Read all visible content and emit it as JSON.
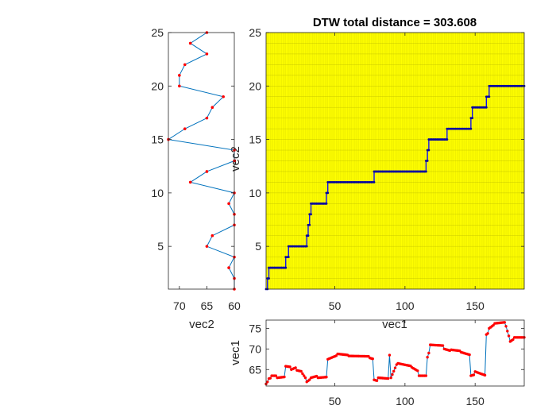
{
  "chart_data": [
    {
      "id": "dtw-path",
      "type": "line",
      "title": "DTW total distance = 303.608",
      "xlabel": "vec1",
      "ylabel": "vec2",
      "xlim": [
        1,
        185
      ],
      "ylim": [
        1,
        25
      ],
      "xticks": [
        50,
        100,
        150
      ],
      "yticks": [
        5,
        10,
        15,
        20,
        25
      ],
      "background": "#ffff00",
      "grid": "dense cell grid",
      "line_color": "#0000ff",
      "marker_color": "#0000a0",
      "path_steps": [
        {
          "x_from": 1,
          "x_to": 2,
          "y": 1
        },
        {
          "x_from": 2,
          "x_to": 3,
          "y": 2
        },
        {
          "x_from": 3,
          "x_to": 15,
          "y": 3
        },
        {
          "x_from": 15,
          "x_to": 17,
          "y": 4
        },
        {
          "x_from": 17,
          "x_to": 30,
          "y": 5
        },
        {
          "x_from": 30,
          "x_to": 31,
          "y": 6
        },
        {
          "x_from": 31,
          "x_to": 32,
          "y": 7
        },
        {
          "x_from": 32,
          "x_to": 33,
          "y": 8
        },
        {
          "x_from": 33,
          "x_to": 44,
          "y": 9
        },
        {
          "x_from": 44,
          "x_to": 45,
          "y": 10
        },
        {
          "x_from": 45,
          "x_to": 78,
          "y": 11
        },
        {
          "x_from": 78,
          "x_to": 115,
          "y": 12
        },
        {
          "x_from": 115,
          "x_to": 116,
          "y": 13
        },
        {
          "x_from": 116,
          "x_to": 117,
          "y": 14
        },
        {
          "x_from": 117,
          "x_to": 130,
          "y": 15
        },
        {
          "x_from": 130,
          "x_to": 147,
          "y": 16
        },
        {
          "x_from": 147,
          "x_to": 148,
          "y": 17
        },
        {
          "x_from": 148,
          "x_to": 158,
          "y": 18
        },
        {
          "x_from": 158,
          "x_to": 160,
          "y": 19
        },
        {
          "x_from": 160,
          "x_to": 185,
          "y": 20
        }
      ]
    },
    {
      "id": "vec2-plot",
      "type": "line",
      "xlabel": "vec2",
      "ylabel": "",
      "xlim": [
        72,
        60
      ],
      "ylim": [
        1,
        25
      ],
      "xticks": [
        70,
        65,
        60
      ],
      "yticks": [
        5,
        10,
        15,
        20,
        25
      ],
      "line_color": "#0072bd",
      "marker_color": "#ff0000",
      "y": [
        1,
        2,
        3,
        4,
        5,
        6,
        7,
        8,
        9,
        10,
        11,
        12,
        13,
        14,
        15,
        16,
        17,
        18,
        19,
        20,
        21,
        22,
        23,
        24,
        25
      ],
      "values": [
        60,
        60,
        61,
        60,
        65,
        64,
        60,
        60,
        61,
        60,
        68,
        65,
        60,
        60,
        72,
        69,
        65,
        64,
        62,
        70,
        70,
        69,
        65,
        68,
        65
      ]
    },
    {
      "id": "vec1-plot",
      "type": "line",
      "xlabel": "",
      "ylabel": "vec1",
      "xlim": [
        1,
        185
      ],
      "ylim": [
        61,
        77
      ],
      "xticks": [
        50,
        100,
        150
      ],
      "yticks": [
        65,
        70,
        75
      ],
      "line_color": "#0072bd",
      "marker_color": "#ff0000",
      "segments": [
        {
          "from": 1,
          "to": 3,
          "start": 61.5,
          "end": 62.5
        },
        {
          "from": 3,
          "to": 5,
          "start": 62.8,
          "end": 63.0
        },
        {
          "from": 5,
          "to": 9,
          "start": 63.5,
          "end": 63.5
        },
        {
          "from": 9,
          "to": 14,
          "start": 63.0,
          "end": 63.2
        },
        {
          "from": 15,
          "to": 19,
          "start": 65.8,
          "end": 65.6
        },
        {
          "from": 19,
          "to": 23,
          "start": 65.0,
          "end": 65.6
        },
        {
          "from": 23,
          "to": 27,
          "start": 64.8,
          "end": 64.5
        },
        {
          "from": 27,
          "to": 30,
          "start": 64.0,
          "end": 62.5
        },
        {
          "from": 30,
          "to": 33,
          "start": 62.0,
          "end": 62.8
        },
        {
          "from": 33,
          "to": 38,
          "start": 63.0,
          "end": 63.5
        },
        {
          "from": 38,
          "to": 45,
          "start": 63.0,
          "end": 63.2
        },
        {
          "from": 45,
          "to": 52,
          "start": 67.5,
          "end": 68.5
        },
        {
          "from": 52,
          "to": 60,
          "start": 68.8,
          "end": 68.5
        },
        {
          "from": 60,
          "to": 75,
          "start": 68.3,
          "end": 68.2
        },
        {
          "from": 75,
          "to": 78,
          "start": 67.8,
          "end": 67.5
        },
        {
          "from": 78,
          "to": 81,
          "start": 62.5,
          "end": 62.2
        },
        {
          "from": 81,
          "to": 89,
          "start": 63.0,
          "end": 62.8
        },
        {
          "from": 89,
          "to": 90,
          "start": 68.5,
          "end": 68.5
        },
        {
          "from": 90,
          "to": 95,
          "start": 63.0,
          "end": 67.0
        },
        {
          "from": 95,
          "to": 105,
          "start": 66.5,
          "end": 65.8
        },
        {
          "from": 105,
          "to": 110,
          "start": 65.5,
          "end": 64.5
        },
        {
          "from": 110,
          "to": 116,
          "start": 63.5,
          "end": 63.5
        },
        {
          "from": 116,
          "to": 118,
          "start": 68.0,
          "end": 70.0
        },
        {
          "from": 118,
          "to": 128,
          "start": 71.0,
          "end": 70.8
        },
        {
          "from": 128,
          "to": 133,
          "start": 70.0,
          "end": 69.5
        },
        {
          "from": 133,
          "to": 140,
          "start": 69.8,
          "end": 69.5
        },
        {
          "from": 140,
          "to": 147,
          "start": 69.2,
          "end": 68.5
        },
        {
          "from": 147,
          "to": 150,
          "start": 63.5,
          "end": 63.8
        },
        {
          "from": 150,
          "to": 158,
          "start": 64.5,
          "end": 63.5
        },
        {
          "from": 158,
          "to": 160,
          "start": 73.5,
          "end": 74.0
        },
        {
          "from": 160,
          "to": 164,
          "start": 75.0,
          "end": 76.0
        },
        {
          "from": 164,
          "to": 172,
          "start": 76.2,
          "end": 76.5
        },
        {
          "from": 172,
          "to": 175,
          "start": 75.5,
          "end": 72.0
        },
        {
          "from": 175,
          "to": 178,
          "start": 71.8,
          "end": 72.5
        },
        {
          "from": 178,
          "to": 185,
          "start": 72.8,
          "end": 72.8
        }
      ]
    }
  ]
}
